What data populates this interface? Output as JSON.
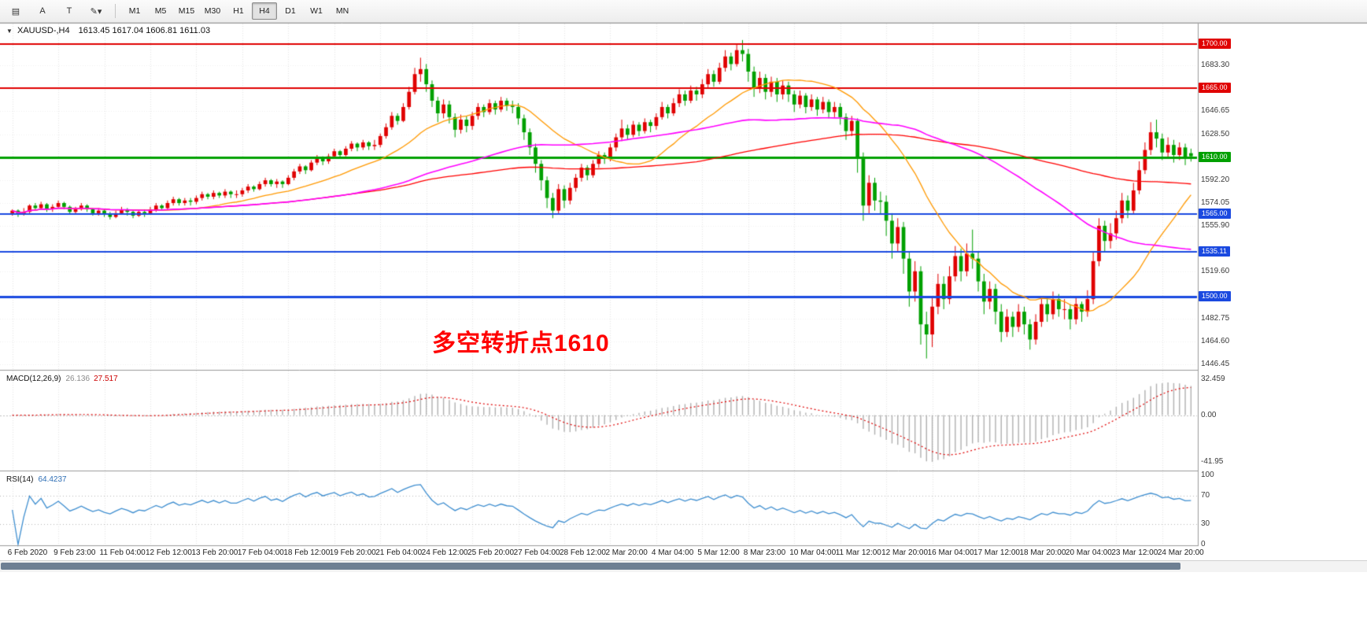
{
  "toolbar": {
    "icons": [
      {
        "name": "templates-icon",
        "glyph": "▤"
      },
      {
        "name": "cursor-icon",
        "glyph": "A"
      },
      {
        "name": "text-tool-icon",
        "glyph": "T"
      },
      {
        "name": "draw-tools-dropdown-icon",
        "glyph": "✎▾"
      }
    ],
    "timeframes": [
      "M1",
      "M5",
      "M15",
      "M30",
      "H1",
      "H4",
      "D1",
      "W1",
      "MN"
    ],
    "active_timeframe": "H4"
  },
  "chart_data": {
    "type": "candlestick",
    "symbol": "XAUUSD-,H4",
    "ohlc_display": "1613.45 1617.04 1606.81 1611.03",
    "ylim": [
      1442,
      1716
    ],
    "colors": {
      "bull": "#e00000",
      "bear": "#00a000",
      "grid": "rgba(0,0,0,0.10)"
    },
    "annotation": {
      "text": "多空转折点1610",
      "color": "#ff0000"
    },
    "moving_averages": [
      {
        "name": "ma-slow",
        "period": 120,
        "color": "#ff0000"
      },
      {
        "name": "ma-fast",
        "period": 20,
        "color": "#ff9900"
      },
      {
        "name": "ma-mid",
        "period": 60,
        "color": "#ff00ff"
      }
    ],
    "hlines": [
      {
        "label": "1700.00",
        "price": 1700.0,
        "color": "#e00000",
        "width": 2
      },
      {
        "label": "1665.00",
        "price": 1665.0,
        "color": "#e00000",
        "width": 2
      },
      {
        "label": "1610.00",
        "price": 1610.0,
        "color": "#00a000",
        "width": 3
      },
      {
        "label": "1565.00",
        "price": 1565.0,
        "color": "#1a49e0",
        "width": 2
      },
      {
        "label": "1535.11",
        "price": 1535.11,
        "color": "#1a49e0",
        "width": 2
      },
      {
        "label": "1500.00",
        "price": 1500.0,
        "color": "#1a49e0",
        "width": 3
      }
    ],
    "y_axis": {
      "ticks": [
        "1683.30",
        "1646.65",
        "1628.50",
        "1592.20",
        "1574.05",
        "1555.90",
        "1519.60",
        "1482.75",
        "1464.60",
        "1446.45"
      ]
    },
    "x_labels": [
      "6 Feb 2020",
      "9 Feb 23:00",
      "11 Feb 04:00",
      "12 Feb 12:00",
      "13 Feb 20:00",
      "17 Feb 04:00",
      "18 Feb 12:00",
      "19 Feb 20:00",
      "21 Feb 04:00",
      "24 Feb 12:00",
      "25 Feb 20:00",
      "27 Feb 04:00",
      "28 Feb 12:00",
      "2 Mar 20:00",
      "4 Mar 04:00",
      "5 Mar 12:00",
      "8 Mar 23:00",
      "10 Mar 04:00",
      "11 Mar 12:00",
      "12 Mar 20:00",
      "16 Mar 04:00",
      "17 Mar 12:00",
      "18 Mar 20:00",
      "20 Mar 04:00",
      "23 Mar 12:00",
      "24 Mar 20:00"
    ],
    "candles": [
      [
        1566,
        1569,
        1564,
        1568
      ],
      [
        1568,
        1569,
        1563,
        1565
      ],
      [
        1565,
        1570,
        1564,
        1567
      ],
      [
        1567,
        1573,
        1566,
        1572
      ],
      [
        1572,
        1574,
        1568,
        1570
      ],
      [
        1570,
        1575,
        1569,
        1573
      ],
      [
        1573,
        1574,
        1567,
        1569
      ],
      [
        1569,
        1573,
        1567,
        1571
      ],
      [
        1571,
        1576,
        1570,
        1574
      ],
      [
        1574,
        1575,
        1569,
        1571
      ],
      [
        1571,
        1572,
        1565,
        1567
      ],
      [
        1567,
        1571,
        1565,
        1569
      ],
      [
        1569,
        1574,
        1568,
        1572
      ],
      [
        1572,
        1573,
        1567,
        1569
      ],
      [
        1569,
        1570,
        1564,
        1566
      ],
      [
        1566,
        1570,
        1564,
        1568
      ],
      [
        1568,
        1569,
        1563,
        1565
      ],
      [
        1565,
        1567,
        1561,
        1563
      ],
      [
        1563,
        1568,
        1562,
        1566
      ],
      [
        1566,
        1571,
        1565,
        1569
      ],
      [
        1569,
        1570,
        1564,
        1567
      ],
      [
        1567,
        1568,
        1562,
        1564
      ],
      [
        1564,
        1569,
        1563,
        1567
      ],
      [
        1567,
        1569,
        1563,
        1566
      ],
      [
        1566,
        1571,
        1565,
        1569
      ],
      [
        1569,
        1574,
        1567,
        1572
      ],
      [
        1572,
        1573,
        1568,
        1570
      ],
      [
        1570,
        1576,
        1569,
        1574
      ],
      [
        1574,
        1579,
        1572,
        1577
      ],
      [
        1577,
        1578,
        1572,
        1574
      ],
      [
        1574,
        1578,
        1572,
        1576
      ],
      [
        1576,
        1578,
        1572,
        1575
      ],
      [
        1575,
        1580,
        1573,
        1578
      ],
      [
        1578,
        1583,
        1576,
        1581
      ],
      [
        1581,
        1582,
        1577,
        1579
      ],
      [
        1579,
        1584,
        1577,
        1582
      ],
      [
        1582,
        1583,
        1578,
        1580
      ],
      [
        1580,
        1585,
        1578,
        1583
      ],
      [
        1583,
        1584,
        1578,
        1581
      ],
      [
        1581,
        1584,
        1578,
        1581
      ],
      [
        1581,
        1586,
        1579,
        1584
      ],
      [
        1584,
        1589,
        1582,
        1587
      ],
      [
        1587,
        1588,
        1583,
        1585
      ],
      [
        1585,
        1591,
        1584,
        1589
      ],
      [
        1589,
        1594,
        1587,
        1592
      ],
      [
        1592,
        1593,
        1587,
        1589
      ],
      [
        1589,
        1593,
        1586,
        1591
      ],
      [
        1591,
        1592,
        1586,
        1589
      ],
      [
        1589,
        1596,
        1588,
        1594
      ],
      [
        1594,
        1601,
        1592,
        1599
      ],
      [
        1599,
        1605,
        1597,
        1603
      ],
      [
        1603,
        1604,
        1597,
        1600
      ],
      [
        1600,
        1608,
        1599,
        1606
      ],
      [
        1606,
        1612,
        1604,
        1610
      ],
      [
        1610,
        1611,
        1604,
        1607
      ],
      [
        1607,
        1613,
        1605,
        1611
      ],
      [
        1611,
        1617,
        1609,
        1615
      ],
      [
        1615,
        1616,
        1609,
        1612
      ],
      [
        1612,
        1619,
        1611,
        1617
      ],
      [
        1617,
        1623,
        1615,
        1621
      ],
      [
        1621,
        1622,
        1615,
        1618
      ],
      [
        1618,
        1624,
        1616,
        1622
      ],
      [
        1622,
        1623,
        1616,
        1619
      ],
      [
        1619,
        1624,
        1616,
        1620
      ],
      [
        1620,
        1629,
        1618,
        1627
      ],
      [
        1627,
        1637,
        1625,
        1634
      ],
      [
        1634,
        1646,
        1632,
        1643
      ],
      [
        1643,
        1645,
        1636,
        1639
      ],
      [
        1639,
        1653,
        1638,
        1650
      ],
      [
        1650,
        1666,
        1648,
        1662
      ],
      [
        1662,
        1681,
        1660,
        1676
      ],
      [
        1676,
        1689,
        1670,
        1680
      ],
      [
        1680,
        1684,
        1662,
        1668
      ],
      [
        1668,
        1671,
        1650,
        1655
      ],
      [
        1655,
        1658,
        1638,
        1645
      ],
      [
        1645,
        1656,
        1641,
        1652
      ],
      [
        1652,
        1655,
        1637,
        1642
      ],
      [
        1642,
        1645,
        1626,
        1632
      ],
      [
        1632,
        1644,
        1629,
        1640
      ],
      [
        1640,
        1643,
        1630,
        1635
      ],
      [
        1635,
        1646,
        1632,
        1643
      ],
      [
        1643,
        1653,
        1640,
        1650
      ],
      [
        1650,
        1652,
        1642,
        1646
      ],
      [
        1646,
        1656,
        1644,
        1653
      ],
      [
        1653,
        1655,
        1644,
        1648
      ],
      [
        1648,
        1658,
        1646,
        1655
      ],
      [
        1655,
        1657,
        1647,
        1651
      ],
      [
        1651,
        1655,
        1645,
        1650
      ],
      [
        1650,
        1653,
        1636,
        1641
      ],
      [
        1641,
        1644,
        1624,
        1630
      ],
      [
        1630,
        1633,
        1612,
        1618
      ],
      [
        1618,
        1621,
        1598,
        1605
      ],
      [
        1605,
        1608,
        1584,
        1592
      ],
      [
        1592,
        1595,
        1570,
        1578
      ],
      [
        1578,
        1582,
        1562,
        1568
      ],
      [
        1568,
        1589,
        1565,
        1585
      ],
      [
        1585,
        1588,
        1570,
        1576
      ],
      [
        1576,
        1590,
        1573,
        1586
      ],
      [
        1586,
        1597,
        1583,
        1594
      ],
      [
        1594,
        1605,
        1591,
        1602
      ],
      [
        1602,
        1604,
        1592,
        1596
      ],
      [
        1596,
        1608,
        1594,
        1605
      ],
      [
        1605,
        1615,
        1602,
        1612
      ],
      [
        1612,
        1614,
        1605,
        1610
      ],
      [
        1610,
        1621,
        1607,
        1618
      ],
      [
        1618,
        1629,
        1615,
        1626
      ],
      [
        1626,
        1640,
        1623,
        1633
      ],
      [
        1633,
        1636,
        1624,
        1628
      ],
      [
        1628,
        1639,
        1626,
        1636
      ],
      [
        1636,
        1638,
        1627,
        1631
      ],
      [
        1631,
        1641,
        1629,
        1638
      ],
      [
        1638,
        1640,
        1630,
        1635
      ],
      [
        1635,
        1645,
        1632,
        1642
      ],
      [
        1642,
        1654,
        1640,
        1650
      ],
      [
        1650,
        1652,
        1641,
        1645
      ],
      [
        1645,
        1657,
        1643,
        1653
      ],
      [
        1653,
        1664,
        1650,
        1660
      ],
      [
        1660,
        1663,
        1651,
        1655
      ],
      [
        1655,
        1667,
        1653,
        1663
      ],
      [
        1663,
        1666,
        1655,
        1660
      ],
      [
        1660,
        1672,
        1657,
        1668
      ],
      [
        1668,
        1680,
        1665,
        1676
      ],
      [
        1676,
        1679,
        1666,
        1670
      ],
      [
        1670,
        1685,
        1668,
        1681
      ],
      [
        1681,
        1695,
        1678,
        1690
      ],
      [
        1690,
        1693,
        1679,
        1684
      ],
      [
        1684,
        1700,
        1682,
        1695
      ],
      [
        1695,
        1703,
        1686,
        1692
      ],
      [
        1692,
        1696,
        1670,
        1678
      ],
      [
        1678,
        1682,
        1658,
        1665
      ],
      [
        1665,
        1678,
        1661,
        1673
      ],
      [
        1673,
        1676,
        1656,
        1662
      ],
      [
        1662,
        1674,
        1658,
        1670
      ],
      [
        1670,
        1673,
        1654,
        1660
      ],
      [
        1660,
        1671,
        1656,
        1667
      ],
      [
        1667,
        1670,
        1654,
        1660
      ],
      [
        1660,
        1663,
        1646,
        1652
      ],
      [
        1652,
        1663,
        1649,
        1659
      ],
      [
        1659,
        1661,
        1645,
        1650
      ],
      [
        1650,
        1660,
        1647,
        1656
      ],
      [
        1656,
        1658,
        1643,
        1648
      ],
      [
        1648,
        1658,
        1645,
        1654
      ],
      [
        1654,
        1656,
        1641,
        1646
      ],
      [
        1646,
        1654,
        1642,
        1650
      ],
      [
        1650,
        1653,
        1636,
        1642
      ],
      [
        1642,
        1645,
        1624,
        1631
      ],
      [
        1631,
        1643,
        1627,
        1639
      ],
      [
        1639,
        1641,
        1598,
        1610
      ],
      [
        1610,
        1614,
        1560,
        1572
      ],
      [
        1572,
        1596,
        1566,
        1590
      ],
      [
        1590,
        1594,
        1568,
        1576
      ],
      [
        1576,
        1583,
        1565,
        1575
      ],
      [
        1575,
        1580,
        1548,
        1560
      ],
      [
        1560,
        1566,
        1530,
        1542
      ],
      [
        1542,
        1562,
        1536,
        1555
      ],
      [
        1555,
        1559,
        1518,
        1530
      ],
      [
        1530,
        1536,
        1492,
        1504
      ],
      [
        1504,
        1528,
        1496,
        1520
      ],
      [
        1520,
        1524,
        1462,
        1478
      ],
      [
        1478,
        1488,
        1451,
        1470
      ],
      [
        1470,
        1500,
        1460,
        1492
      ],
      [
        1492,
        1518,
        1486,
        1510
      ],
      [
        1510,
        1516,
        1490,
        1498
      ],
      [
        1498,
        1524,
        1494,
        1516
      ],
      [
        1516,
        1540,
        1512,
        1532
      ],
      [
        1532,
        1538,
        1512,
        1520
      ],
      [
        1520,
        1542,
        1516,
        1534
      ],
      [
        1534,
        1553,
        1522,
        1530
      ],
      [
        1530,
        1536,
        1504,
        1512
      ],
      [
        1512,
        1518,
        1486,
        1496
      ],
      [
        1496,
        1512,
        1490,
        1506
      ],
      [
        1506,
        1510,
        1478,
        1488
      ],
      [
        1488,
        1494,
        1464,
        1472
      ],
      [
        1472,
        1490,
        1468,
        1484
      ],
      [
        1484,
        1488,
        1468,
        1476
      ],
      [
        1476,
        1494,
        1472,
        1488
      ],
      [
        1488,
        1492,
        1470,
        1478
      ],
      [
        1478,
        1482,
        1458,
        1466
      ],
      [
        1466,
        1486,
        1462,
        1480
      ],
      [
        1480,
        1500,
        1476,
        1494
      ],
      [
        1494,
        1498,
        1480,
        1486
      ],
      [
        1486,
        1504,
        1482,
        1498
      ],
      [
        1498,
        1502,
        1484,
        1490
      ],
      [
        1490,
        1498,
        1482,
        1490
      ],
      [
        1490,
        1494,
        1474,
        1482
      ],
      [
        1482,
        1500,
        1478,
        1494
      ],
      [
        1494,
        1496,
        1480,
        1488
      ],
      [
        1488,
        1505,
        1484,
        1498
      ],
      [
        1498,
        1536,
        1494,
        1528
      ],
      [
        1528,
        1562,
        1524,
        1556
      ],
      [
        1556,
        1560,
        1536,
        1544
      ],
      [
        1544,
        1558,
        1538,
        1550
      ],
      [
        1550,
        1568,
        1545,
        1562
      ],
      [
        1562,
        1582,
        1558,
        1576
      ],
      [
        1576,
        1580,
        1562,
        1568
      ],
      [
        1568,
        1590,
        1565,
        1584
      ],
      [
        1584,
        1607,
        1581,
        1600
      ],
      [
        1600,
        1622,
        1597,
        1616
      ],
      [
        1616,
        1638,
        1612,
        1630
      ],
      [
        1630,
        1640,
        1618,
        1625
      ],
      [
        1625,
        1629,
        1608,
        1614
      ],
      [
        1614,
        1626,
        1610,
        1620
      ],
      [
        1620,
        1624,
        1606,
        1612
      ],
      [
        1612,
        1622,
        1608,
        1618
      ],
      [
        1618,
        1621,
        1604,
        1610
      ],
      [
        1613.45,
        1617.04,
        1606.81,
        1611.03
      ]
    ]
  },
  "macd": {
    "name": "MACD(12,26,9)",
    "value_main": "26.136",
    "value_signal": "27.517",
    "fast": 12,
    "slow": 26,
    "signal": 9,
    "ylim": [
      -48,
      36
    ],
    "axis_labels": [
      "32.459",
      "0.00",
      "-41.95"
    ],
    "histogram_color": "#b0b0b0",
    "signal_color": "#e00000"
  },
  "rsi": {
    "name": "RSI(14)",
    "value": "64.4237",
    "period": 14,
    "levels": [
      70,
      30
    ],
    "axis_labels": [
      "100",
      "70",
      "30",
      "0"
    ],
    "line_color": "#3e8ed0"
  }
}
